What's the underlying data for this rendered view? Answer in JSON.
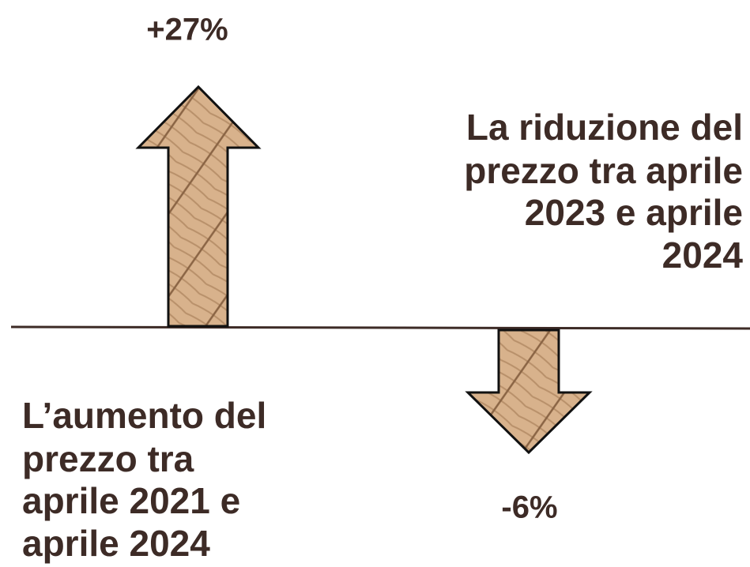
{
  "increase": {
    "label": "+27%",
    "description": [
      "L’aumento del",
      "prezzo tra",
      "aprile 2021 e",
      "aprile 2024"
    ]
  },
  "decrease": {
    "label": "-6%",
    "description": [
      "La riduzione del",
      "prezzo tra aprile",
      "2023 e aprile",
      "2024"
    ]
  }
}
